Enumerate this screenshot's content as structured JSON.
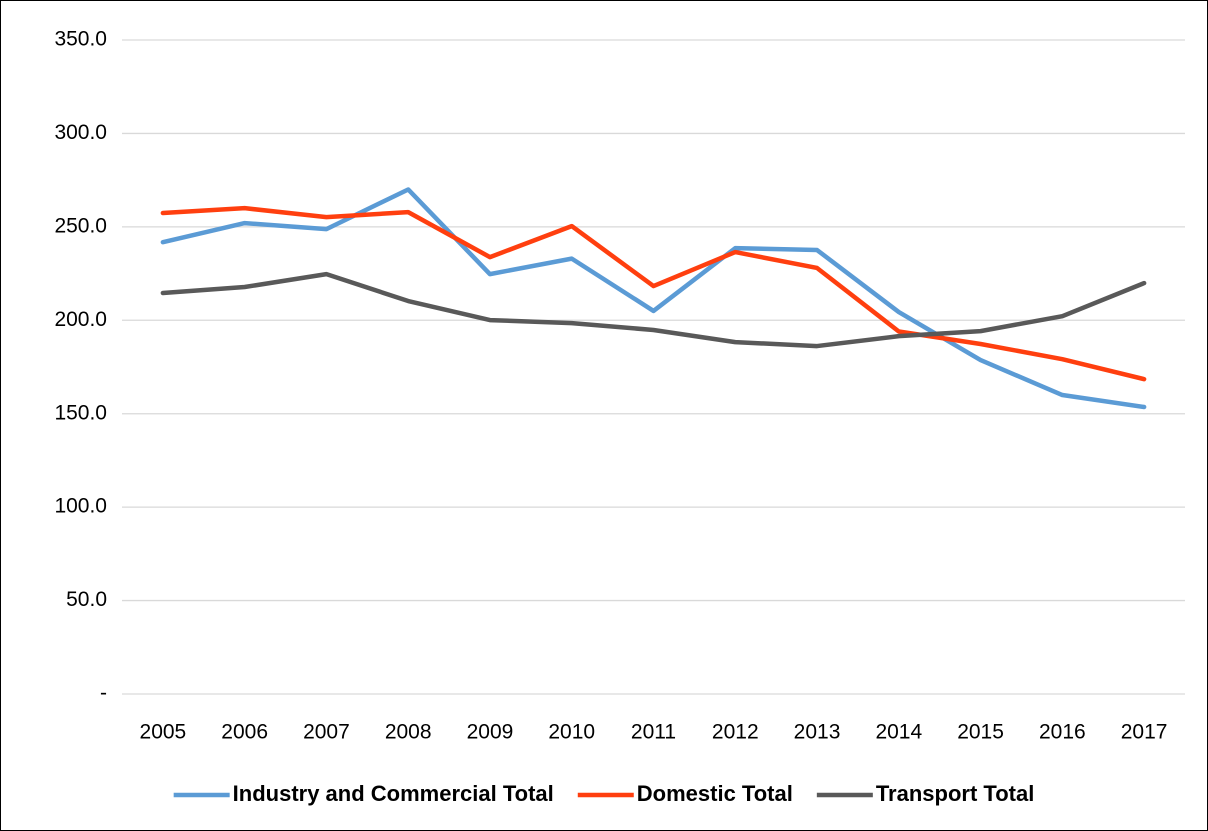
{
  "chart_data": {
    "type": "line",
    "categories": [
      "2005",
      "2006",
      "2007",
      "2008",
      "2009",
      "2010",
      "2011",
      "2012",
      "2013",
      "2014",
      "2015",
      "2016",
      "2017"
    ],
    "series": [
      {
        "name": "Industry and Commercial Total",
        "color": "#5b9bd5",
        "values": [
          241.8,
          252.0,
          248.8,
          270.0,
          224.7,
          233.0,
          205.0,
          238.6,
          237.6,
          204.4,
          178.7,
          160.0,
          153.6
        ]
      },
      {
        "name": "Domestic Total",
        "color": "#ff3f0f",
        "values": [
          257.4,
          260.0,
          255.2,
          257.9,
          233.8,
          250.4,
          218.3,
          236.5,
          228.0,
          194.0,
          187.3,
          179.2,
          168.5
        ]
      },
      {
        "name": "Transport Total",
        "color": "#595959",
        "values": [
          214.6,
          217.8,
          224.7,
          210.3,
          200.1,
          198.5,
          194.8,
          188.3,
          186.2,
          191.5,
          194.2,
          202.2,
          219.9
        ]
      }
    ],
    "ylim": [
      0,
      350
    ],
    "yticks": [
      {
        "value": 0,
        "label": "-"
      },
      {
        "value": 50,
        "label": "50.0"
      },
      {
        "value": 100,
        "label": "100.0"
      },
      {
        "value": 150,
        "label": "150.0"
      },
      {
        "value": 200,
        "label": "200.0"
      },
      {
        "value": 250,
        "label": "250.0"
      },
      {
        "value": 300,
        "label": "300.0"
      },
      {
        "value": 350,
        "label": "350.0"
      }
    ],
    "grid": true,
    "legend": "bottom"
  }
}
